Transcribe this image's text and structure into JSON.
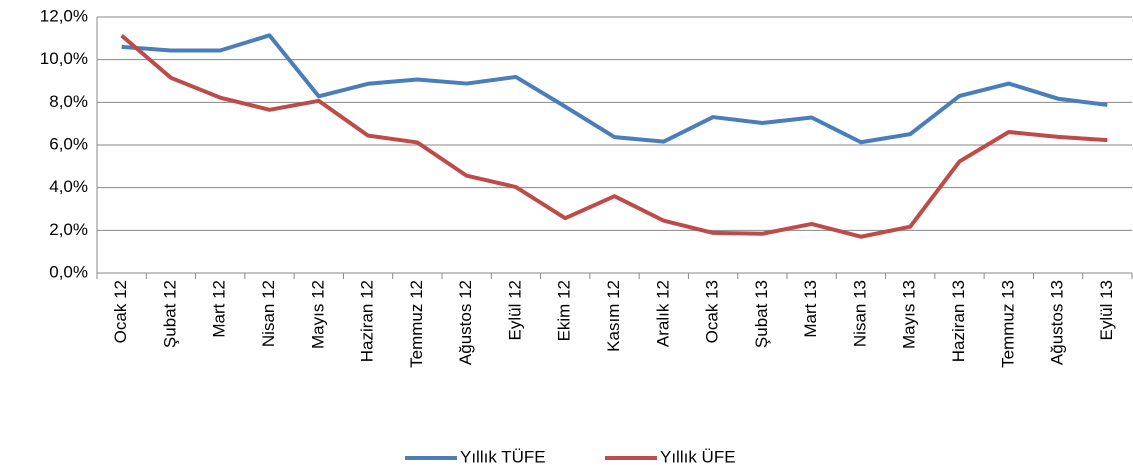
{
  "chart_data": {
    "type": "line",
    "categories": [
      "Ocak 12",
      "Şubat 12",
      "Mart 12",
      "Nisan 12",
      "Mayıs 12",
      "Haziran 12",
      "Temmuz 12",
      "Ağustos 12",
      "Eylül 12",
      "Ekim 12",
      "Kasım 12",
      "Aralık 12",
      "Ocak 13",
      "Şubat 13",
      "Mart 13",
      "Nisan 13",
      "Mayıs 13",
      "Haziran 13",
      "Temmuz 13",
      "Ağustos 13",
      "Eylül 13"
    ],
    "series": [
      {
        "name": "Yıllık TÜFE",
        "color": "#4a7ebb",
        "values": [
          10.6,
          10.43,
          10.43,
          11.14,
          8.28,
          8.87,
          9.07,
          8.88,
          9.19,
          7.8,
          6.37,
          6.16,
          7.31,
          7.03,
          7.29,
          6.13,
          6.51,
          8.3,
          8.88,
          8.17,
          7.88
        ]
      },
      {
        "name": "Yıllık ÜFE",
        "color": "#be4b48",
        "values": [
          11.13,
          9.15,
          8.22,
          7.65,
          8.07,
          6.44,
          6.12,
          4.56,
          4.03,
          2.57,
          3.6,
          2.45,
          1.88,
          1.84,
          2.3,
          1.7,
          2.17,
          5.23,
          6.61,
          6.38,
          6.23
        ]
      }
    ],
    "ylim": [
      0,
      12
    ],
    "yticks": [
      {
        "value": 0,
        "label": "0,0%"
      },
      {
        "value": 2,
        "label": "2,0%"
      },
      {
        "value": 4,
        "label": "4,0%"
      },
      {
        "value": 6,
        "label": "6,0%"
      },
      {
        "value": 8,
        "label": "8,0%"
      },
      {
        "value": 10,
        "label": "10,0%"
      },
      {
        "value": 12,
        "label": "12,0%"
      }
    ],
    "grid": true,
    "legend": "bottom"
  }
}
